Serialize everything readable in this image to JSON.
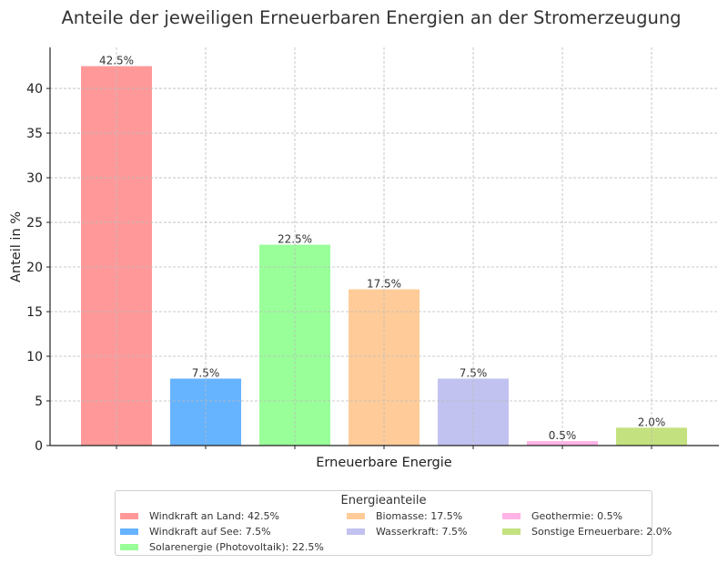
{
  "chart_data": {
    "type": "bar",
    "title": "Anteile der jeweiligen Erneuerbaren Energien an der Stromerzeugung",
    "xlabel": "Erneuerbare Energie",
    "ylabel": "Anteil in %",
    "ylim": [
      0,
      44.6
    ],
    "yticks": [
      0,
      5,
      10,
      15,
      20,
      25,
      30,
      35,
      40
    ],
    "grid": true,
    "legend_placement": "bottom-center",
    "categories": [
      "Windkraft an Land",
      "Windkraft auf See",
      "Solarenergie (Photovoltaik)",
      "Biomasse",
      "Wasserkraft",
      "Geothermie",
      "Sonstige Erneuerbare"
    ],
    "values": [
      42.5,
      7.5,
      22.5,
      17.5,
      7.5,
      0.5,
      2.0
    ],
    "data_labels": [
      "42.5%",
      "7.5%",
      "22.5%",
      "17.5%",
      "7.5%",
      "0.5%",
      "2.0%"
    ],
    "colors": [
      "#ff9999",
      "#66b3ff",
      "#99ff99",
      "#ffcc99",
      "#c2c2f0",
      "#ffb3e6",
      "#c4e17f"
    ],
    "legend": {
      "title": "Energieanteile",
      "entries": [
        "Windkraft an Land: 42.5%",
        "Windkraft auf See: 7.5%",
        "Solarenergie (Photovoltaik): 22.5%",
        "Biomasse: 17.5%",
        "Wasserkraft: 7.5%",
        "Geothermie: 0.5%",
        "Sonstige Erneuerbare: 2.0%"
      ]
    }
  }
}
